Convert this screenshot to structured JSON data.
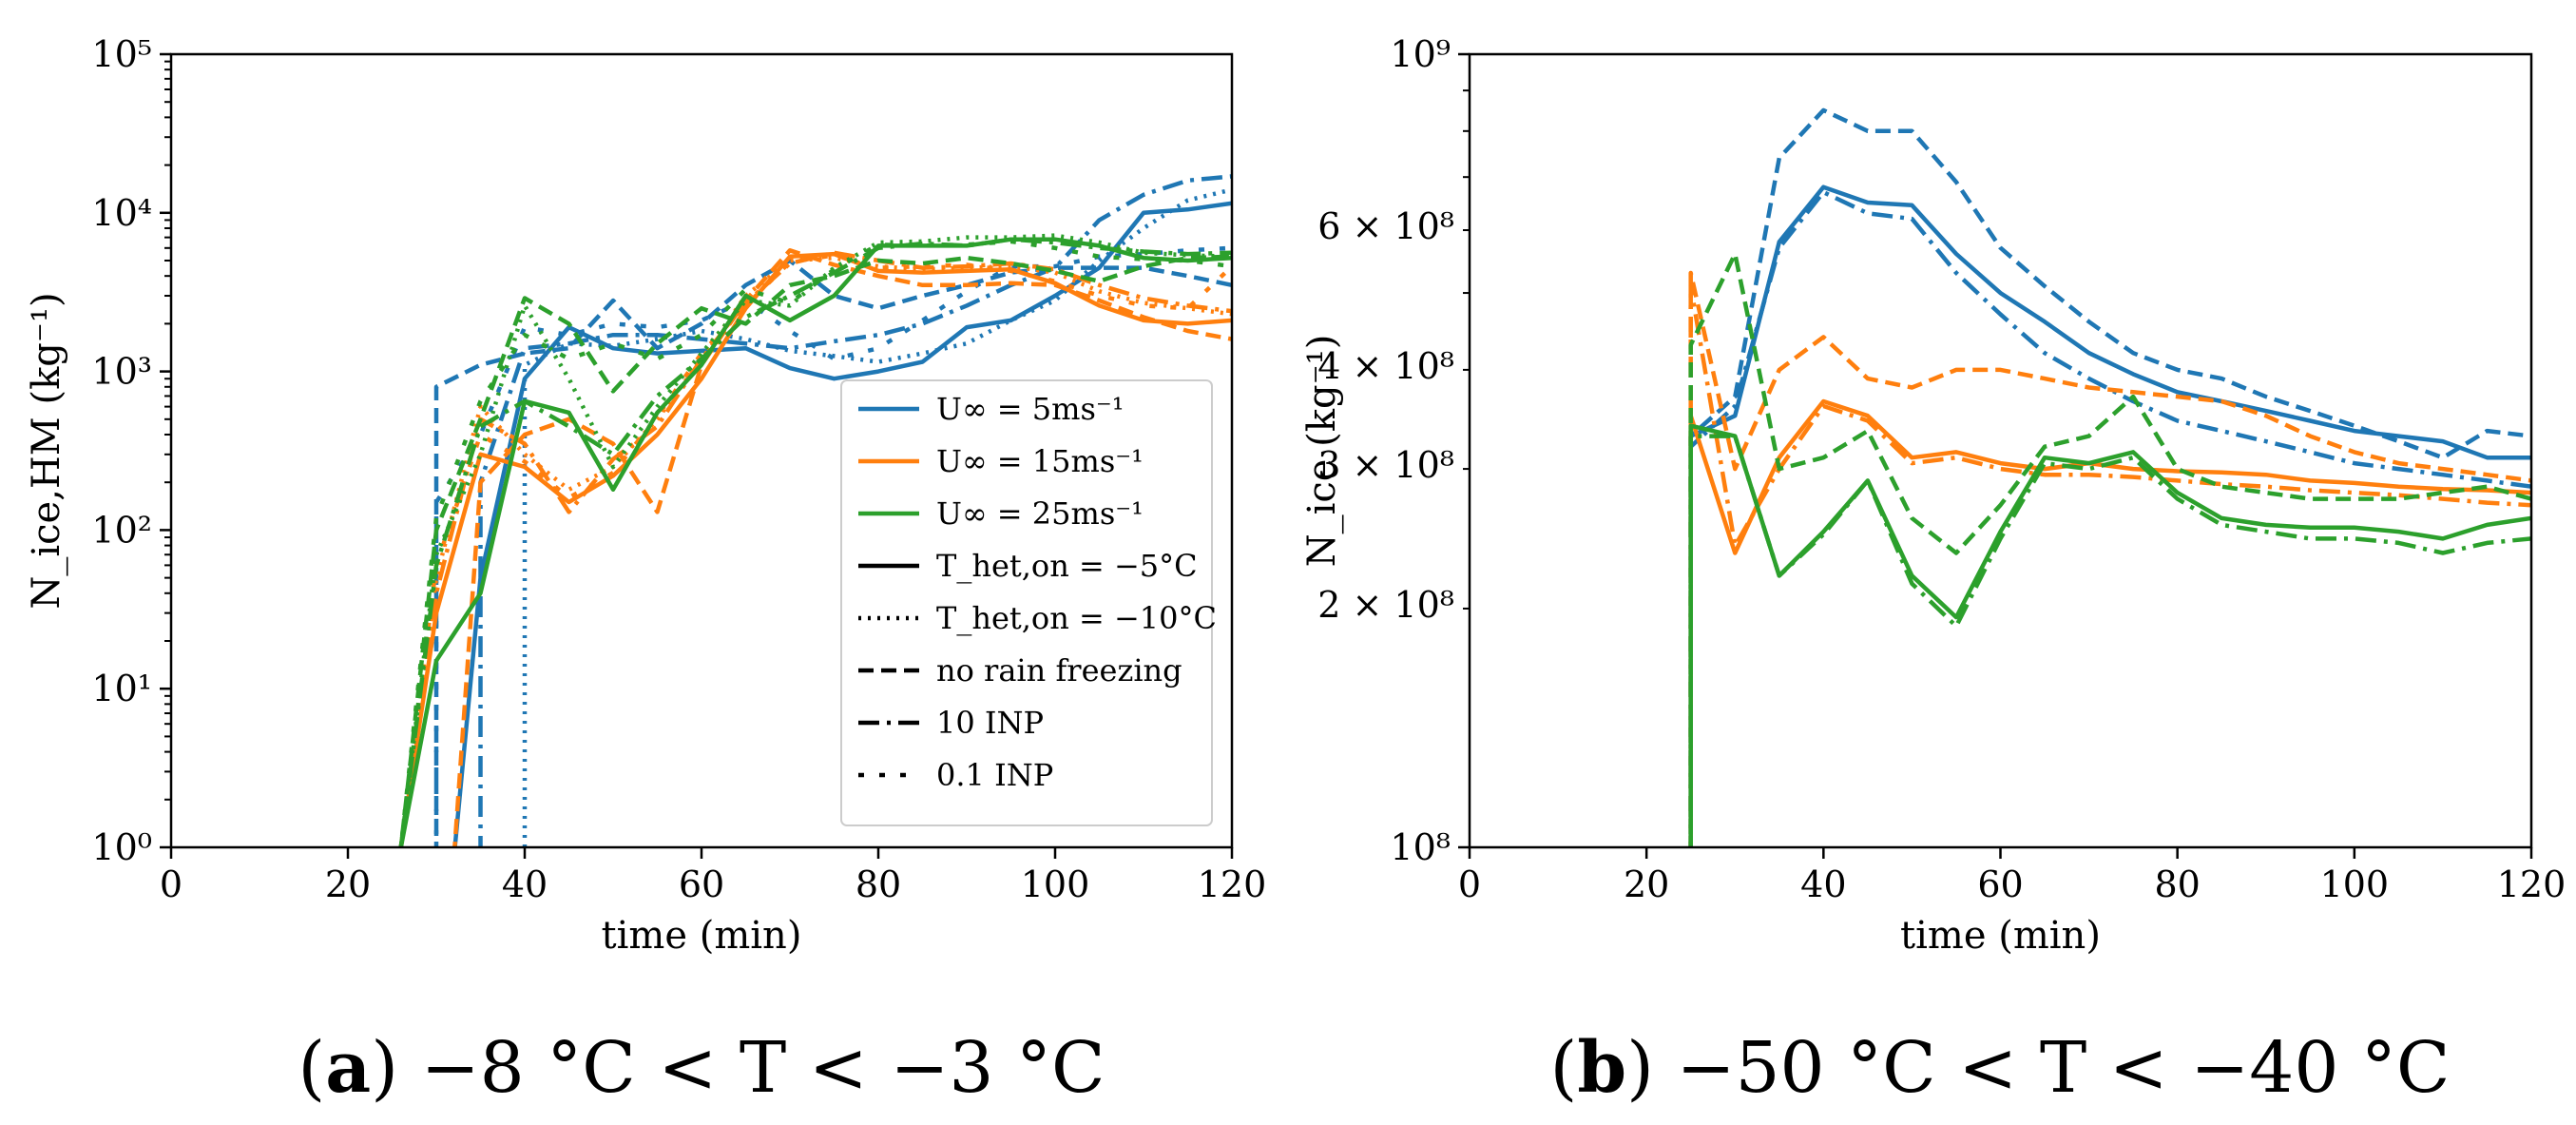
{
  "colors": {
    "blue": "#1f77b4",
    "orange": "#ff7f0e",
    "green": "#2ca02c"
  },
  "chart_data": [
    {
      "type": "line",
      "id": "a",
      "caption": {
        "letter": "a",
        "text": "−8 °C < T < −3 °C"
      },
      "xlabel": "time (min)",
      "ylabel": "N_ice,HM (kg⁻¹)",
      "xlim": [
        0,
        120
      ],
      "ylim": [
        1,
        100000
      ],
      "yscale": "log",
      "xticks": [
        0,
        20,
        40,
        60,
        80,
        100,
        120
      ],
      "xtick_labels": [
        "0",
        "20",
        "40",
        "60",
        "80",
        "100",
        "120"
      ],
      "yticks": [
        1,
        10,
        100,
        1000,
        10000,
        100000
      ],
      "ytick_labels": [
        "10⁰",
        "10¹",
        "10²",
        "10³",
        "10⁴",
        "10⁵"
      ],
      "minor_yticks": true,
      "grid": false,
      "legend": {
        "position": "lower-right",
        "entries": [
          {
            "label": "U∞ = 5ms⁻¹",
            "color": "#1f77b4",
            "style": "solid"
          },
          {
            "label": "U∞ = 15ms⁻¹",
            "color": "#ff7f0e",
            "style": "solid"
          },
          {
            "label": "U∞ = 25ms⁻¹",
            "color": "#2ca02c",
            "style": "solid"
          },
          {
            "label": "T_het,on = −5°C",
            "color": "#000000",
            "style": "solid"
          },
          {
            "label": "T_het,on = −10°C",
            "color": "#000000",
            "style": "dotted"
          },
          {
            "label": "no rain freezing",
            "color": "#000000",
            "style": "dashed"
          },
          {
            "label": "10 INP",
            "color": "#000000",
            "style": "dashdot"
          },
          {
            "label": "0.1 INP",
            "color": "#000000",
            "style": "loosedot"
          }
        ]
      },
      "x": [
        26,
        30,
        35,
        40,
        45,
        50,
        55,
        60,
        65,
        70,
        75,
        80,
        85,
        90,
        95,
        100,
        105,
        110,
        115,
        120
      ],
      "series": [
        {
          "name": "U=5, T=-5 solid",
          "color": "blue",
          "style": "solid",
          "x0": 32,
          "values": [
            null,
            null,
            50,
            900,
            1900,
            1400,
            1300,
            1350,
            1400,
            1050,
            900,
            1000,
            1150,
            1900,
            2100,
            3000,
            4500,
            10000,
            10500,
            11500
          ]
        },
        {
          "name": "U=5 dotted",
          "color": "blue",
          "style": "dotted",
          "values": [
            null,
            null,
            null,
            1100,
            1500,
            1450,
            1600,
            1800,
            1600,
            1350,
            1250,
            1150,
            1300,
            1500,
            2100,
            2800,
            5000,
            8000,
            12000,
            14000
          ]
        },
        {
          "name": "U=5 dashed",
          "color": "blue",
          "style": "dashed",
          "values": [
            null,
            800,
            1100,
            1300,
            1400,
            2800,
            1400,
            2000,
            3500,
            5000,
            3000,
            2500,
            3000,
            3500,
            4200,
            4500,
            4500,
            4500,
            4000,
            3500
          ]
        },
        {
          "name": "U=5 dashdot",
          "color": "blue",
          "style": "dashdot",
          "values": [
            null,
            null,
            200,
            1400,
            1500,
            1700,
            1700,
            1600,
            1500,
            1400,
            1550,
            1700,
            2000,
            2600,
            3500,
            4500,
            9000,
            13000,
            16000,
            17000
          ]
        },
        {
          "name": "U=5 loosedot",
          "color": "blue",
          "style": "loosedot",
          "values": [
            null,
            150,
            400,
            1900,
            1700,
            2000,
            1900,
            2100,
            2800,
            1800,
            1200,
            1400,
            2100,
            3200,
            4600,
            4600,
            5300,
            5500,
            5800,
            6000
          ]
        },
        {
          "name": "U=15 solid",
          "color": "orange",
          "style": "solid",
          "values": [
            1,
            30,
            300,
            250,
            150,
            220,
            400,
            900,
            2500,
            5300,
            5500,
            4300,
            4200,
            4300,
            4400,
            3600,
            2600,
            2100,
            2000,
            2100
          ]
        },
        {
          "name": "U=15 dotted",
          "color": "orange",
          "style": "dotted",
          "values": [
            1,
            50,
            600,
            300,
            180,
            250,
            500,
            1200,
            3000,
            5000,
            5200,
            4600,
            4400,
            4500,
            4600,
            4200,
            3200,
            2700,
            2500,
            2300
          ]
        },
        {
          "name": "U=15 dashed",
          "color": "orange",
          "style": "dashed",
          "x0": 32,
          "values": [
            null,
            null,
            200,
            400,
            500,
            350,
            130,
            1100,
            2800,
            5800,
            4700,
            4000,
            3500,
            3500,
            3600,
            3500,
            2800,
            2200,
            1800,
            1600
          ]
        },
        {
          "name": "U=15 dashdot",
          "color": "orange",
          "style": "dashdot",
          "values": [
            1,
            40,
            500,
            350,
            130,
            280,
            450,
            1200,
            2700,
            4800,
            5600,
            5000,
            4500,
            4600,
            4800,
            4400,
            3500,
            2900,
            2600,
            2400
          ]
        },
        {
          "name": "U=15 loosedot",
          "color": "orange",
          "style": "loosedot",
          "values": [
            1,
            60,
            400,
            270,
            160,
            230,
            520,
            1300,
            2600,
            4900,
            5400,
            4500,
            4600,
            4700,
            4300,
            3700,
            3000,
            2600,
            2500,
            4600
          ]
        },
        {
          "name": "U=25 solid",
          "color": "green",
          "style": "solid",
          "values": [
            1,
            15,
            40,
            650,
            550,
            180,
            550,
            1100,
            3000,
            2100,
            3000,
            6200,
            6200,
            6200,
            6800,
            6800,
            6200,
            5200,
            5000,
            5200
          ]
        },
        {
          "name": "U=25 dotted",
          "color": "green",
          "style": "dotted",
          "values": [
            1,
            70,
            300,
            2600,
            900,
            250,
            600,
            1300,
            2800,
            2600,
            4500,
            6500,
            6600,
            7000,
            7000,
            7200,
            6500,
            5600,
            5400,
            5300
          ]
        },
        {
          "name": "U=25 dashed",
          "color": "green",
          "style": "dashed",
          "values": [
            1,
            100,
            500,
            2900,
            2000,
            750,
            1500,
            2500,
            2000,
            3500,
            4000,
            5000,
            4800,
            5200,
            4800,
            4300,
            3700,
            4600,
            5200,
            5300
          ]
        },
        {
          "name": "U=25 dashdot",
          "color": "green",
          "style": "dashdot",
          "values": [
            1,
            60,
            450,
            650,
            450,
            300,
            700,
            1200,
            2200,
            3000,
            4200,
            6000,
            6400,
            6200,
            6800,
            6500,
            6000,
            5700,
            5500,
            5600
          ]
        },
        {
          "name": "U=25 loosedot",
          "color": "green",
          "style": "loosedot",
          "values": [
            1,
            120,
            650,
            1700,
            1200,
            1500,
            1200,
            1700,
            3300,
            2700,
            4400,
            6300,
            6200,
            6300,
            6600,
            6000,
            5300,
            5100,
            5000,
            4600
          ]
        }
      ]
    },
    {
      "type": "line",
      "id": "b",
      "caption": {
        "letter": "b",
        "text": "−50 °C < T < −40 °C"
      },
      "xlabel": "time (min)",
      "ylabel": "N_ice (kg⁻¹)",
      "xlim": [
        0,
        120
      ],
      "ylim": [
        100000000,
        1000000000
      ],
      "yscale": "log",
      "xticks": [
        0,
        20,
        40,
        60,
        80,
        100,
        120
      ],
      "xtick_labels": [
        "0",
        "20",
        "40",
        "60",
        "80",
        "100",
        "120"
      ],
      "yticks": [
        100000000,
        1000000000
      ],
      "ytick_labels": [
        "10⁸",
        "10⁹"
      ],
      "minor_yticks": [
        200000000,
        300000000,
        400000000,
        600000000
      ],
      "minor_ytick_labels": [
        "2 × 10⁸",
        "3 × 10⁸",
        "4 × 10⁸",
        "6 × 10⁸"
      ],
      "grid": false,
      "x": [
        25,
        30,
        35,
        40,
        45,
        50,
        55,
        60,
        65,
        70,
        75,
        80,
        85,
        90,
        95,
        100,
        105,
        110,
        115,
        120
      ],
      "series": [
        {
          "name": "U=5 solid",
          "color": "blue",
          "style": "solid",
          "values": [
            330000000,
            350000000,
            580000000,
            680000000,
            650000000,
            645000000,
            560000000,
            500000000,
            460000000,
            420000000,
            395000000,
            375000000,
            365000000,
            355000000,
            345000000,
            335000000,
            330000000,
            325000000,
            310000000,
            310000000
          ]
        },
        {
          "name": "U=5 dashed",
          "color": "blue",
          "style": "dashed",
          "values": [
            330000000,
            370000000,
            740000000,
            850000000,
            800000000,
            800000000,
            690000000,
            570000000,
            510000000,
            460000000,
            420000000,
            400000000,
            390000000,
            370000000,
            355000000,
            340000000,
            325000000,
            310000000,
            335000000,
            330000000
          ]
        },
        {
          "name": "U=5 dashdot",
          "color": "blue",
          "style": "dashdot",
          "values": [
            320000000,
            360000000,
            570000000,
            670000000,
            630000000,
            620000000,
            530000000,
            470000000,
            420000000,
            390000000,
            365000000,
            345000000,
            335000000,
            325000000,
            315000000,
            305000000,
            300000000,
            295000000,
            290000000,
            285000000
          ]
        },
        {
          "name": "U=15 solid",
          "color": "orange",
          "style": "solid",
          "values": [
            350000000,
            235000000,
            310000000,
            365000000,
            350000000,
            310000000,
            315000000,
            305000000,
            300000000,
            305000000,
            300000000,
            298000000,
            297000000,
            295000000,
            290000000,
            288000000,
            285000000,
            283000000,
            282000000,
            280000000
          ]
        },
        {
          "name": "U=15 dashed",
          "color": "orange",
          "style": "dashed",
          "values": [
            530000000,
            300000000,
            400000000,
            440000000,
            390000000,
            380000000,
            400000000,
            400000000,
            390000000,
            380000000,
            375000000,
            370000000,
            365000000,
            350000000,
            330000000,
            315000000,
            305000000,
            300000000,
            295000000,
            290000000
          ]
        },
        {
          "name": "U=15 dashdot",
          "color": "orange",
          "style": "dashdot",
          "values": [
            510000000,
            240000000,
            300000000,
            360000000,
            345000000,
            305000000,
            310000000,
            300000000,
            295000000,
            295000000,
            293000000,
            290000000,
            287000000,
            285000000,
            282000000,
            280000000,
            278000000,
            275000000,
            272000000,
            270000000
          ]
        },
        {
          "name": "U=25 solid",
          "color": "green",
          "style": "solid",
          "values": [
            340000000,
            330000000,
            220000000,
            250000000,
            290000000,
            220000000,
            195000000,
            250000000,
            310000000,
            305000000,
            315000000,
            280000000,
            260000000,
            255000000,
            253000000,
            253000000,
            250000000,
            245000000,
            255000000,
            260000000
          ]
        },
        {
          "name": "U=25 dashed",
          "color": "green",
          "style": "dashed",
          "values": [
            430000000,
            560000000,
            300000000,
            310000000,
            335000000,
            260000000,
            235000000,
            270000000,
            320000000,
            330000000,
            370000000,
            300000000,
            285000000,
            280000000,
            275000000,
            275000000,
            275000000,
            280000000,
            285000000,
            275000000
          ]
        },
        {
          "name": "U=25 dashdot",
          "color": "green",
          "style": "dashdot",
          "values": [
            330000000,
            330000000,
            220000000,
            248000000,
            290000000,
            215000000,
            190000000,
            245000000,
            305000000,
            300000000,
            310000000,
            275000000,
            255000000,
            250000000,
            245000000,
            245000000,
            242000000,
            235000000,
            242000000,
            245000000
          ]
        }
      ]
    }
  ]
}
